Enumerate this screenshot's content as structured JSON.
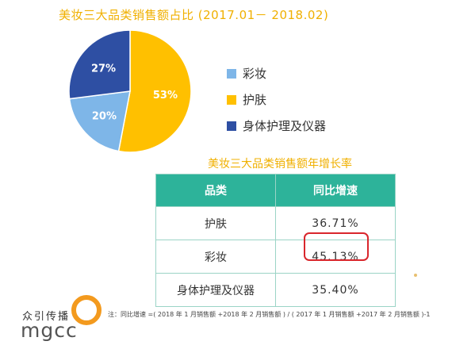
{
  "chart_data": [
    {
      "type": "pie",
      "title": "美妆三大品类销售额占比 (2017.01－ 2018.02)",
      "slices": [
        {
          "name": "护肤",
          "value": 53,
          "label": "53%",
          "color": "#ffc000"
        },
        {
          "name": "彩妆",
          "value": 20,
          "label": "20%",
          "color": "#7eb6e8"
        },
        {
          "name": "身体护理及仪器",
          "value": 27,
          "label": "27%",
          "color": "#2e4fa3"
        }
      ],
      "legend_order": [
        "彩妆",
        "护肤",
        "身体护理及仪器"
      ],
      "legend": "right"
    },
    {
      "type": "table",
      "title": "美妆三大品类销售额年增长率",
      "columns": [
        "品类",
        "同比增速"
      ],
      "rows": [
        {
          "category": "护肤",
          "growth": "36.71%"
        },
        {
          "category": "彩妆",
          "growth": "45.13%"
        },
        {
          "category": "身体护理及仪器",
          "growth": "35.40%"
        }
      ],
      "highlighted_row": 1
    }
  ],
  "note": "注：同比增速 =( 2018 年 1 月销售额 +2018 年 2 月销售额 ) / ( 2017 年 1 月销售额 +2017 年 2 月销售额 )-1",
  "logo": {
    "cn": "众引传播",
    "en": "mgcc",
    "ring_color": "#f39a1e"
  }
}
